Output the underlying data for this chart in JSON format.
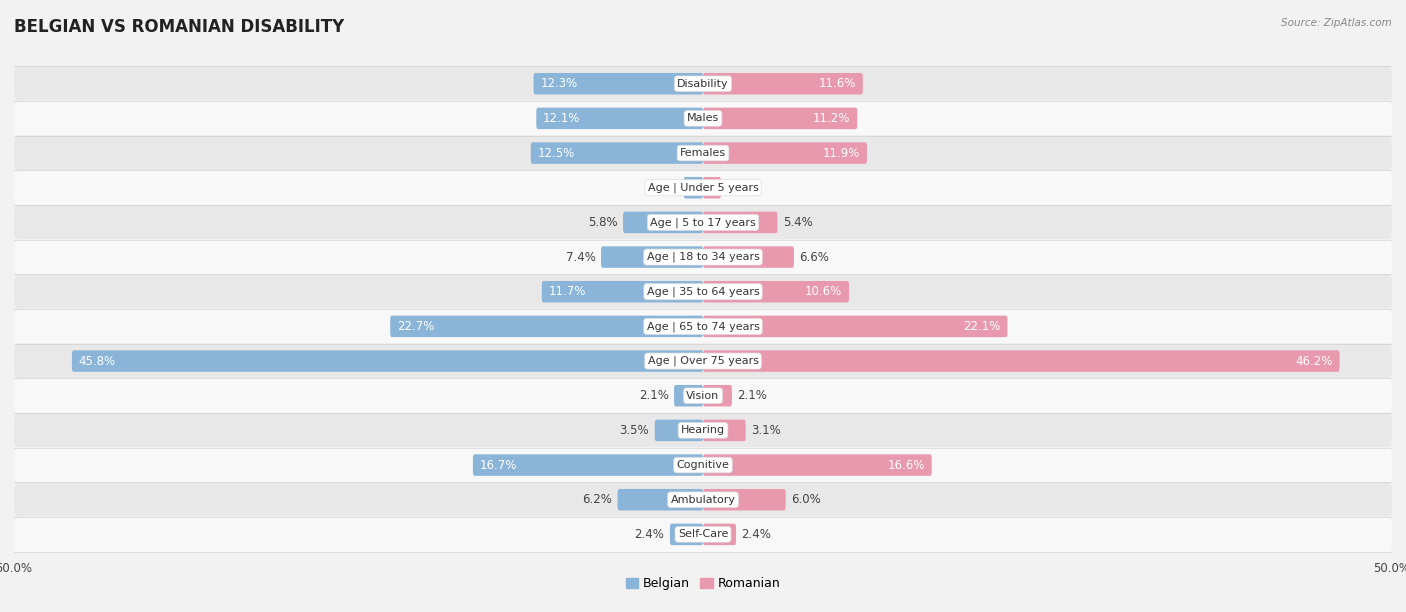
{
  "title": "BELGIAN VS ROMANIAN DISABILITY",
  "source": "Source: ZipAtlas.com",
  "categories": [
    "Disability",
    "Males",
    "Females",
    "Age | Under 5 years",
    "Age | 5 to 17 years",
    "Age | 18 to 34 years",
    "Age | 35 to 64 years",
    "Age | 65 to 74 years",
    "Age | Over 75 years",
    "Vision",
    "Hearing",
    "Cognitive",
    "Ambulatory",
    "Self-Care"
  ],
  "belgian_values": [
    12.3,
    12.1,
    12.5,
    1.4,
    5.8,
    7.4,
    11.7,
    22.7,
    45.8,
    2.1,
    3.5,
    16.7,
    6.2,
    2.4
  ],
  "romanian_values": [
    11.6,
    11.2,
    11.9,
    1.3,
    5.4,
    6.6,
    10.6,
    22.1,
    46.2,
    2.1,
    3.1,
    16.6,
    6.0,
    2.4
  ],
  "belgian_color": "#8ab4d8",
  "romanian_color": "#e899ae",
  "bg_color": "#f2f2f2",
  "row_bg_light": "#f8f8f8",
  "row_bg_dark": "#e8e8e8",
  "max_value": 50.0,
  "bar_height": 0.62,
  "title_fontsize": 12,
  "label_fontsize": 8.5,
  "value_fontsize": 8.5,
  "tick_fontsize": 8.5,
  "legend_fontsize": 9,
  "cat_label_fontsize": 8
}
